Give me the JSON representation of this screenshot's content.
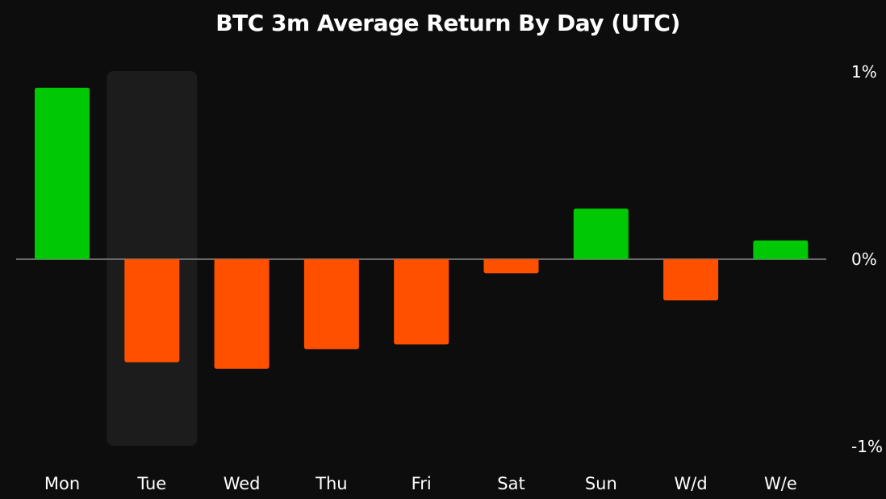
{
  "chart_data": {
    "type": "bar",
    "title": "BTC 3m Average Return By Day (UTC)",
    "categories": [
      "Mon",
      "Tue",
      "Wed",
      "Thu",
      "Fri",
      "Sat",
      "Sun",
      "W/d",
      "W/e"
    ],
    "values": [
      0.915,
      -0.55,
      -0.585,
      -0.48,
      -0.455,
      -0.075,
      0.27,
      -0.22,
      0.1
    ],
    "highlighted_category": "Tue",
    "ylim": [
      -1,
      1
    ],
    "y_ticks": [
      {
        "value": 1,
        "label": "1%"
      },
      {
        "value": 0,
        "label": "0%"
      },
      {
        "value": -1,
        "label": "-1%"
      }
    ],
    "y_axis_side": "right",
    "grid": false,
    "colors": {
      "positive": "#00c805",
      "negative": "#ff5000",
      "highlight_band": "#1c1c1c",
      "zero_line": "#6a6a6a",
      "background": "#0d0d0d",
      "text": "#ffffff"
    }
  }
}
